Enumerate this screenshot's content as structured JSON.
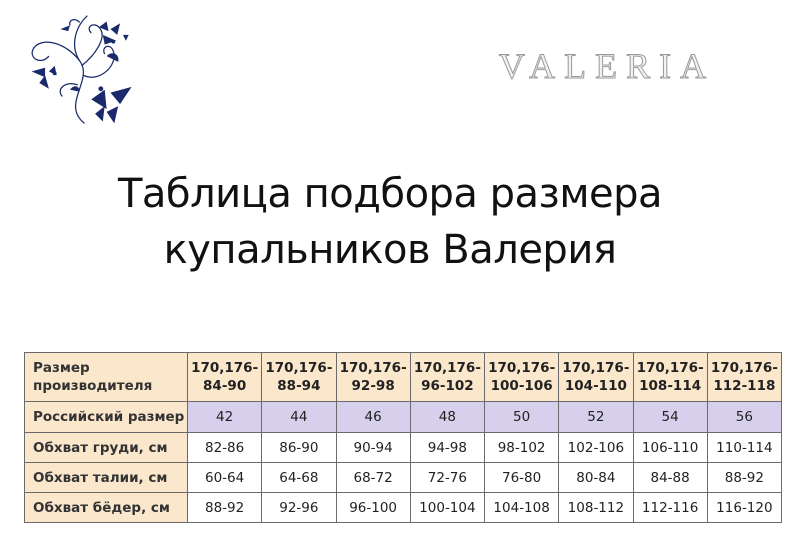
{
  "brand": {
    "logo_text": "VALERIA",
    "ornament_color": "#1a2a6c"
  },
  "title": {
    "line1": "Таблица подбора размера",
    "line2": "купальников Валерия"
  },
  "colors": {
    "header_bg": "#fbe8cc",
    "russian_row_bg": "#d7d0ec",
    "border": "#6a6a6a"
  },
  "table": {
    "header": {
      "label": "Размер производителя",
      "cells": [
        "170,176-84-90",
        "170,176-88-94",
        "170,176-92-98",
        "170,176-96-102",
        "170,176-100-106",
        "170,176-104-110",
        "170,176-108-114",
        "170,176-112-118"
      ]
    },
    "rows": [
      {
        "label": "Российский размер",
        "cells": [
          "42",
          "44",
          "46",
          "48",
          "50",
          "52",
          "54",
          "56"
        ]
      },
      {
        "label": "Обхват груди, см",
        "cells": [
          "82-86",
          "86-90",
          "90-94",
          "94-98",
          "98-102",
          "102-106",
          "106-110",
          "110-114"
        ]
      },
      {
        "label": "Обхват талии, см",
        "cells": [
          "60-64",
          "64-68",
          "68-72",
          "72-76",
          "76-80",
          "80-84",
          "84-88",
          "88-92"
        ]
      },
      {
        "label": "Обхват бёдер, см",
        "cells": [
          "88-92",
          "92-96",
          "96-100",
          "100-104",
          "104-108",
          "108-112",
          "112-116",
          "116-120"
        ]
      }
    ]
  }
}
